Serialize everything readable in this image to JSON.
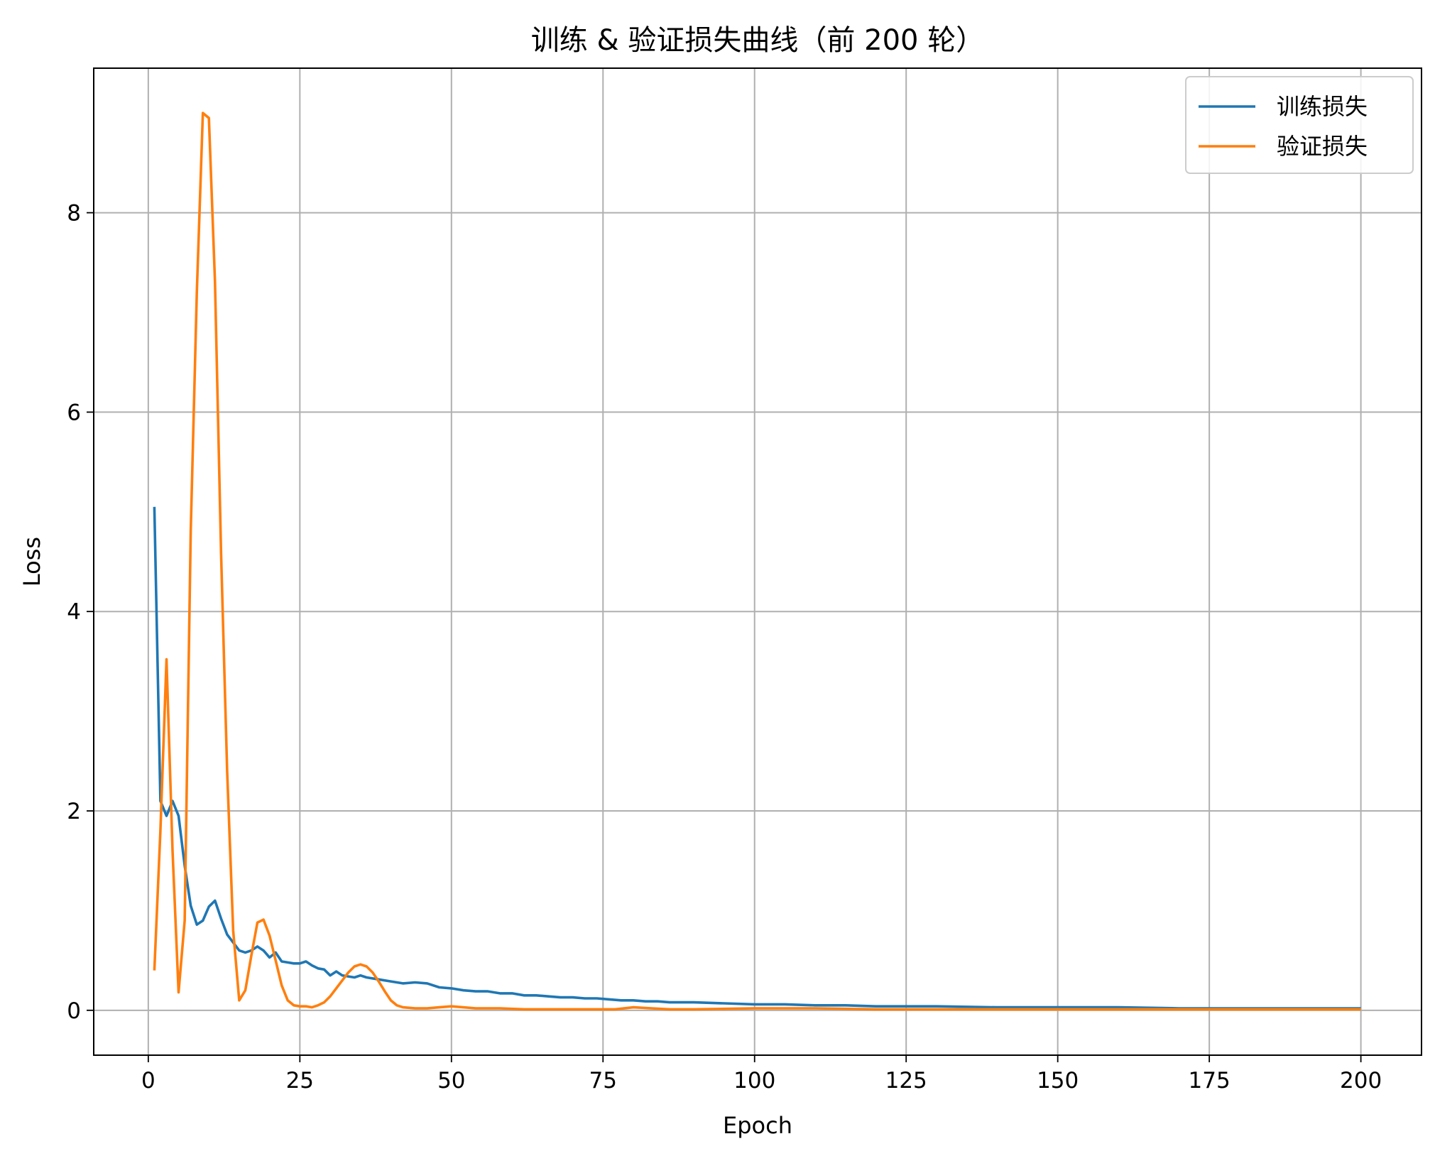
{
  "chart_data": {
    "type": "line",
    "title": "训练 & 验证损失曲线（前 200 轮）",
    "xlabel": "Epoch",
    "ylabel": "Loss",
    "xlim": [
      -9,
      210
    ],
    "ylim": [
      -0.45,
      9.45
    ],
    "xticks": [
      0,
      25,
      50,
      75,
      100,
      125,
      150,
      175,
      200
    ],
    "yticks": [
      0,
      2,
      4,
      6,
      8
    ],
    "grid": true,
    "legend_position": "top-right",
    "series": [
      {
        "name": "训练损失",
        "color": "#1f77b4",
        "points": [
          [
            1,
            5.05
          ],
          [
            2,
            2.1
          ],
          [
            3,
            1.95
          ],
          [
            4,
            2.1
          ],
          [
            5,
            1.95
          ],
          [
            6,
            1.45
          ],
          [
            7,
            1.05
          ],
          [
            8,
            0.86
          ],
          [
            9,
            0.9
          ],
          [
            10,
            1.04
          ],
          [
            11,
            1.1
          ],
          [
            12,
            0.92
          ],
          [
            13,
            0.76
          ],
          [
            14,
            0.68
          ],
          [
            15,
            0.6
          ],
          [
            16,
            0.58
          ],
          [
            17,
            0.6
          ],
          [
            18,
            0.64
          ],
          [
            19,
            0.6
          ],
          [
            20,
            0.53
          ],
          [
            21,
            0.58
          ],
          [
            22,
            0.49
          ],
          [
            23,
            0.48
          ],
          [
            24,
            0.47
          ],
          [
            25,
            0.47
          ],
          [
            26,
            0.49
          ],
          [
            27,
            0.45
          ],
          [
            28,
            0.42
          ],
          [
            29,
            0.41
          ],
          [
            30,
            0.35
          ],
          [
            31,
            0.39
          ],
          [
            32,
            0.35
          ],
          [
            33,
            0.34
          ],
          [
            34,
            0.33
          ],
          [
            35,
            0.35
          ],
          [
            36,
            0.33
          ],
          [
            38,
            0.31
          ],
          [
            40,
            0.29
          ],
          [
            42,
            0.27
          ],
          [
            44,
            0.28
          ],
          [
            46,
            0.27
          ],
          [
            48,
            0.23
          ],
          [
            50,
            0.22
          ],
          [
            52,
            0.2
          ],
          [
            54,
            0.19
          ],
          [
            56,
            0.19
          ],
          [
            58,
            0.17
          ],
          [
            60,
            0.17
          ],
          [
            62,
            0.15
          ],
          [
            64,
            0.15
          ],
          [
            66,
            0.14
          ],
          [
            68,
            0.13
          ],
          [
            70,
            0.13
          ],
          [
            72,
            0.12
          ],
          [
            74,
            0.12
          ],
          [
            76,
            0.11
          ],
          [
            78,
            0.1
          ],
          [
            80,
            0.1
          ],
          [
            82,
            0.09
          ],
          [
            84,
            0.09
          ],
          [
            86,
            0.08
          ],
          [
            88,
            0.08
          ],
          [
            90,
            0.08
          ],
          [
            95,
            0.07
          ],
          [
            100,
            0.06
          ],
          [
            105,
            0.06
          ],
          [
            110,
            0.05
          ],
          [
            115,
            0.05
          ],
          [
            120,
            0.04
          ],
          [
            125,
            0.04
          ],
          [
            130,
            0.04
          ],
          [
            140,
            0.03
          ],
          [
            150,
            0.03
          ],
          [
            160,
            0.03
          ],
          [
            170,
            0.02
          ],
          [
            180,
            0.02
          ],
          [
            190,
            0.02
          ],
          [
            200,
            0.02
          ]
        ]
      },
      {
        "name": "验证损失",
        "color": "#ff7f0e",
        "points": [
          [
            1,
            0.4
          ],
          [
            2,
            1.8
          ],
          [
            3,
            3.52
          ],
          [
            4,
            1.6
          ],
          [
            5,
            0.18
          ],
          [
            6,
            0.9
          ],
          [
            7,
            4.8
          ],
          [
            8,
            7.2
          ],
          [
            9,
            9.0
          ],
          [
            10,
            8.95
          ],
          [
            11,
            7.3
          ],
          [
            12,
            4.6
          ],
          [
            13,
            2.4
          ],
          [
            14,
            0.8
          ],
          [
            15,
            0.1
          ],
          [
            16,
            0.2
          ],
          [
            17,
            0.55
          ],
          [
            18,
            0.88
          ],
          [
            19,
            0.91
          ],
          [
            20,
            0.75
          ],
          [
            21,
            0.5
          ],
          [
            22,
            0.25
          ],
          [
            23,
            0.1
          ],
          [
            24,
            0.05
          ],
          [
            25,
            0.04
          ],
          [
            26,
            0.04
          ],
          [
            27,
            0.03
          ],
          [
            28,
            0.05
          ],
          [
            29,
            0.08
          ],
          [
            30,
            0.14
          ],
          [
            31,
            0.22
          ],
          [
            32,
            0.3
          ],
          [
            33,
            0.38
          ],
          [
            34,
            0.44
          ],
          [
            35,
            0.46
          ],
          [
            36,
            0.44
          ],
          [
            37,
            0.38
          ],
          [
            38,
            0.29
          ],
          [
            39,
            0.19
          ],
          [
            40,
            0.1
          ],
          [
            41,
            0.05
          ],
          [
            42,
            0.03
          ],
          [
            44,
            0.02
          ],
          [
            46,
            0.02
          ],
          [
            48,
            0.03
          ],
          [
            50,
            0.04
          ],
          [
            54,
            0.02
          ],
          [
            58,
            0.02
          ],
          [
            62,
            0.01
          ],
          [
            66,
            0.01
          ],
          [
            70,
            0.01
          ],
          [
            74,
            0.01
          ],
          [
            77,
            0.01
          ],
          [
            80,
            0.03
          ],
          [
            83,
            0.02
          ],
          [
            86,
            0.01
          ],
          [
            90,
            0.01
          ],
          [
            100,
            0.02
          ],
          [
            110,
            0.02
          ],
          [
            120,
            0.01
          ],
          [
            130,
            0.01
          ],
          [
            140,
            0.01
          ],
          [
            150,
            0.01
          ],
          [
            160,
            0.01
          ],
          [
            170,
            0.01
          ],
          [
            180,
            0.01
          ],
          [
            190,
            0.01
          ],
          [
            200,
            0.01
          ]
        ]
      }
    ]
  }
}
